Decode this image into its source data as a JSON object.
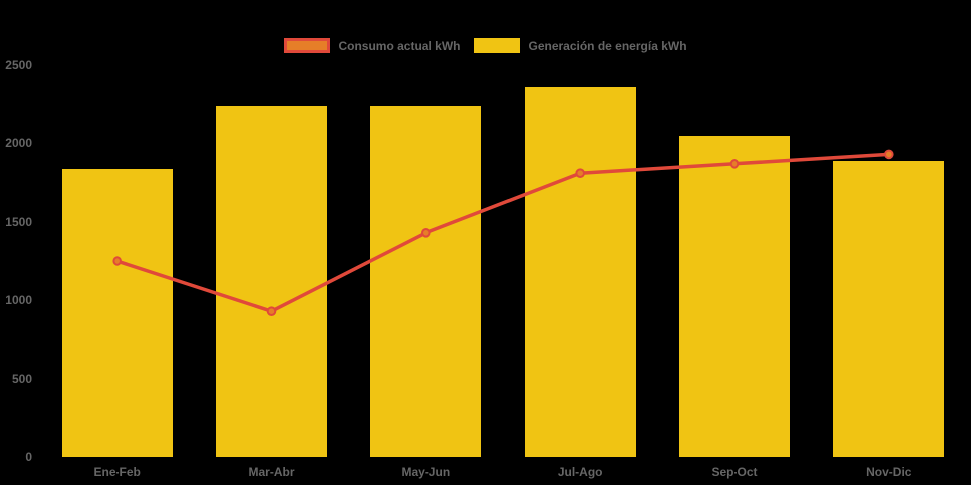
{
  "chart_data": {
    "type": "bar",
    "subtype": "bar-with-line-overlay",
    "categories": [
      "Ene-Feb",
      "Mar-Abr",
      "May-Jun",
      "Jul-Ago",
      "Sep-Oct",
      "Nov-Dic"
    ],
    "series": [
      {
        "name": "Consumo actual kWh",
        "type": "line",
        "color": "#e0493a",
        "marker_fill": "#e67e28",
        "values": [
          1250,
          930,
          1430,
          1810,
          1870,
          1930
        ]
      },
      {
        "name": "Generación de energía kWh",
        "type": "bar",
        "color": "#f0c413",
        "values": [
          1840,
          2240,
          2240,
          2360,
          2050,
          1890
        ]
      }
    ],
    "title": "",
    "xlabel": "",
    "ylabel": "",
    "ylim": [
      0,
      2500
    ],
    "yticks": [
      0,
      500,
      1000,
      1500,
      2000,
      2500
    ],
    "grid": false,
    "legend_position": "top",
    "background_color": "#000000",
    "text_color": "#666666"
  }
}
